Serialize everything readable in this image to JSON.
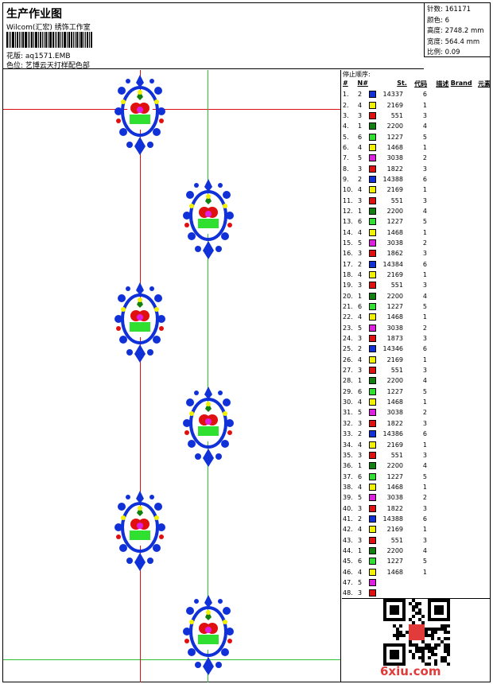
{
  "header": {
    "title": "生产作业图",
    "subtitle": "Wilcom(汇宏) 绣饰工作室",
    "pattern_label": "花版:",
    "pattern_value": "aq1571.EMB",
    "color_label": "色位:",
    "color_value": "艺博云天打样配色部"
  },
  "info": [
    {
      "label": "针数:",
      "value": "161171"
    },
    {
      "label": "颜色:",
      "value": "6"
    },
    {
      "label": "高度:",
      "value": "2748.2 mm"
    },
    {
      "label": "宽度:",
      "value": "564.4 mm"
    },
    {
      "label": "比例:",
      "value": "0.09"
    }
  ],
  "legend": {
    "title": "停止顺序:",
    "headers": [
      "#",
      "N#",
      "St.",
      "代码",
      "描述",
      "Brand",
      "元素"
    ],
    "rows": [
      {
        "idx": "1.",
        "n": "2",
        "color": "#1030d8",
        "st": "14337",
        "code": "6"
      },
      {
        "idx": "2.",
        "n": "4",
        "color": "#f2f200",
        "st": "2169",
        "code": "1"
      },
      {
        "idx": "3.",
        "n": "3",
        "color": "#e01010",
        "st": "551",
        "code": "3"
      },
      {
        "idx": "4.",
        "n": "1",
        "color": "#108010",
        "st": "2200",
        "code": "4"
      },
      {
        "idx": "5.",
        "n": "6",
        "color": "#30e030",
        "st": "1227",
        "code": "5"
      },
      {
        "idx": "6.",
        "n": "4",
        "color": "#f2f200",
        "st": "1468",
        "code": "1"
      },
      {
        "idx": "7.",
        "n": "5",
        "color": "#e020e0",
        "st": "3038",
        "code": "2"
      },
      {
        "idx": "8.",
        "n": "3",
        "color": "#e01010",
        "st": "1822",
        "code": "3"
      },
      {
        "idx": "9.",
        "n": "2",
        "color": "#1030d8",
        "st": "14388",
        "code": "6"
      },
      {
        "idx": "10.",
        "n": "4",
        "color": "#f2f200",
        "st": "2169",
        "code": "1"
      },
      {
        "idx": "11.",
        "n": "3",
        "color": "#e01010",
        "st": "551",
        "code": "3"
      },
      {
        "idx": "12.",
        "n": "1",
        "color": "#108010",
        "st": "2200",
        "code": "4"
      },
      {
        "idx": "13.",
        "n": "6",
        "color": "#30e030",
        "st": "1227",
        "code": "5"
      },
      {
        "idx": "14.",
        "n": "4",
        "color": "#f2f200",
        "st": "1468",
        "code": "1"
      },
      {
        "idx": "15.",
        "n": "5",
        "color": "#e020e0",
        "st": "3038",
        "code": "2"
      },
      {
        "idx": "16.",
        "n": "3",
        "color": "#e01010",
        "st": "1862",
        "code": "3"
      },
      {
        "idx": "17.",
        "n": "2",
        "color": "#1030d8",
        "st": "14384",
        "code": "6"
      },
      {
        "idx": "18.",
        "n": "4",
        "color": "#f2f200",
        "st": "2169",
        "code": "1"
      },
      {
        "idx": "19.",
        "n": "3",
        "color": "#e01010",
        "st": "551",
        "code": "3"
      },
      {
        "idx": "20.",
        "n": "1",
        "color": "#108010",
        "st": "2200",
        "code": "4"
      },
      {
        "idx": "21.",
        "n": "6",
        "color": "#30e030",
        "st": "1227",
        "code": "5"
      },
      {
        "idx": "22.",
        "n": "4",
        "color": "#f2f200",
        "st": "1468",
        "code": "1"
      },
      {
        "idx": "23.",
        "n": "5",
        "color": "#e020e0",
        "st": "3038",
        "code": "2"
      },
      {
        "idx": "24.",
        "n": "3",
        "color": "#e01010",
        "st": "1873",
        "code": "3"
      },
      {
        "idx": "25.",
        "n": "2",
        "color": "#1030d8",
        "st": "14346",
        "code": "6"
      },
      {
        "idx": "26.",
        "n": "4",
        "color": "#f2f200",
        "st": "2169",
        "code": "1"
      },
      {
        "idx": "27.",
        "n": "3",
        "color": "#e01010",
        "st": "551",
        "code": "3"
      },
      {
        "idx": "28.",
        "n": "1",
        "color": "#108010",
        "st": "2200",
        "code": "4"
      },
      {
        "idx": "29.",
        "n": "6",
        "color": "#30e030",
        "st": "1227",
        "code": "5"
      },
      {
        "idx": "30.",
        "n": "4",
        "color": "#f2f200",
        "st": "1468",
        "code": "1"
      },
      {
        "idx": "31.",
        "n": "5",
        "color": "#e020e0",
        "st": "3038",
        "code": "2"
      },
      {
        "idx": "32.",
        "n": "3",
        "color": "#e01010",
        "st": "1822",
        "code": "3"
      },
      {
        "idx": "33.",
        "n": "2",
        "color": "#1030d8",
        "st": "14386",
        "code": "6"
      },
      {
        "idx": "34.",
        "n": "4",
        "color": "#f2f200",
        "st": "2169",
        "code": "1"
      },
      {
        "idx": "35.",
        "n": "3",
        "color": "#e01010",
        "st": "551",
        "code": "3"
      },
      {
        "idx": "36.",
        "n": "1",
        "color": "#108010",
        "st": "2200",
        "code": "4"
      },
      {
        "idx": "37.",
        "n": "6",
        "color": "#30e030",
        "st": "1227",
        "code": "5"
      },
      {
        "idx": "38.",
        "n": "4",
        "color": "#f2f200",
        "st": "1468",
        "code": "1"
      },
      {
        "idx": "39.",
        "n": "5",
        "color": "#e020e0",
        "st": "3038",
        "code": "2"
      },
      {
        "idx": "40.",
        "n": "3",
        "color": "#e01010",
        "st": "1822",
        "code": "3"
      },
      {
        "idx": "41.",
        "n": "2",
        "color": "#1030d8",
        "st": "14388",
        "code": "6"
      },
      {
        "idx": "42.",
        "n": "4",
        "color": "#f2f200",
        "st": "2169",
        "code": "1"
      },
      {
        "idx": "43.",
        "n": "3",
        "color": "#e01010",
        "st": "551",
        "code": "3"
      },
      {
        "idx": "44.",
        "n": "1",
        "color": "#108010",
        "st": "2200",
        "code": "4"
      },
      {
        "idx": "45.",
        "n": "6",
        "color": "#30e030",
        "st": "1227",
        "code": "5"
      },
      {
        "idx": "46.",
        "n": "4",
        "color": "#f2f200",
        "st": "1468",
        "code": "1"
      },
      {
        "idx": "47.",
        "n": "5",
        "color": "#e020e0",
        "st": "",
        "code": ""
      },
      {
        "idx": "48.",
        "n": "3",
        "color": "#e01010",
        "st": "",
        "code": ""
      }
    ]
  },
  "watermark": "6xiu.com",
  "colors": {
    "guide_red": "#e01010",
    "guide_green": "#30c030",
    "motif_blue": "#1030d8"
  }
}
